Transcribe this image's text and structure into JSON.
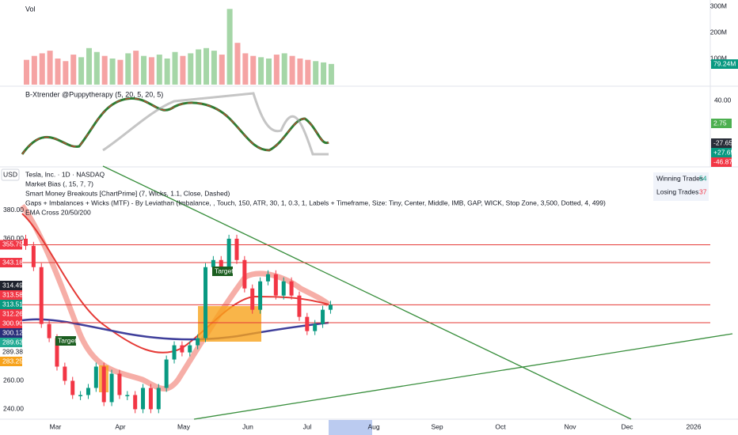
{
  "volume_panel": {
    "title": "Vol",
    "ticks": [
      "300M",
      "200M",
      "100M"
    ],
    "current": "79.24M",
    "values": [
      95,
      110,
      120,
      130,
      100,
      90,
      115,
      105,
      140,
      125,
      110,
      100,
      95,
      120,
      130,
      110,
      105,
      115,
      100,
      125,
      110,
      120,
      135,
      140,
      130,
      115,
      290,
      160,
      120,
      110,
      105,
      100,
      115,
      120,
      110,
      100,
      95,
      90,
      85,
      79.24
    ]
  },
  "xtrender_panel": {
    "title": "B-Xtrender @Puppytherapy (5, 20, 5, 20, 5)",
    "ticks": [
      "40.00"
    ],
    "labels": [
      "2.75",
      "-27.65",
      "+27.65",
      "-46.87"
    ]
  },
  "main_panel": {
    "currency": "USD",
    "legend": [
      "Tesla, Inc. · 1D · NASDAQ",
      "Market Bias (, 15, 7, 7)",
      "Smart Money Breakouts [ChartPrime] (7, Wicks, 1.1, Close, Dashed)",
      "Gaps + Imbalances + Wicks (MTF) - By Leviathan (Imbalance, , Touch, 150, ATR, 30, 1, 0.3, 1, Labels + Timeframe, Size: Tiny, Center, Middle, IMB, GAP, WICK, Stop Zone, 3,500, Dotted, 4, 499)",
      "EMA Cross 20/50/200"
    ],
    "ylim": [
      233,
      410
    ],
    "yticks": [
      {
        "value": 380,
        "label": "380.00"
      },
      {
        "value": 360,
        "label": "360.00"
      },
      {
        "value": 260,
        "label": "260.00"
      },
      {
        "value": 240,
        "label": "240.00"
      }
    ],
    "closes": [
      355,
      340,
      300,
      290,
      270,
      260,
      250,
      250,
      255,
      270,
      245,
      265,
      250,
      250,
      240,
      255,
      240,
      255,
      275,
      285,
      280,
      285,
      290,
      340,
      345,
      340,
      360,
      345,
      325,
      310,
      330,
      335,
      320,
      330,
      320,
      305,
      295,
      300,
      310,
      313.51
    ],
    "levels": [
      {
        "value": 355.75,
        "label": "355.75"
      },
      {
        "value": 343.18,
        "label": "343.18"
      },
      {
        "value": 313.51,
        "label": "313.51"
      },
      {
        "value": 300.9,
        "label": "300.90"
      }
    ],
    "price_tags": [
      {
        "label": "314.49",
        "color": "#1e222d"
      },
      {
        "label": "313.58",
        "color": "#f23645"
      },
      {
        "label": "313.51",
        "color": "#089981"
      },
      {
        "label": "312.26",
        "color": "#f23645"
      },
      {
        "label": "300.90",
        "color": "#f23645"
      },
      {
        "label": "300.12",
        "color": "#2a2e7a"
      },
      {
        "label": "289.63",
        "color": "#22ab94"
      },
      {
        "label": "289.38",
        "color": "#ffffff"
      },
      {
        "label": "283.25",
        "color": "#f7a21b"
      }
    ],
    "annotations": [
      "Target",
      "Target"
    ]
  },
  "trades": {
    "winning_label": "Winning Trades",
    "winning": 54,
    "losing_label": "Losing Trades",
    "losing": 37
  },
  "time_axis": [
    "Mar",
    "Apr",
    "May",
    "Jun",
    "Jul",
    "Aug",
    "Sep",
    "Oct",
    "Nov",
    "Dec",
    "2026"
  ]
}
